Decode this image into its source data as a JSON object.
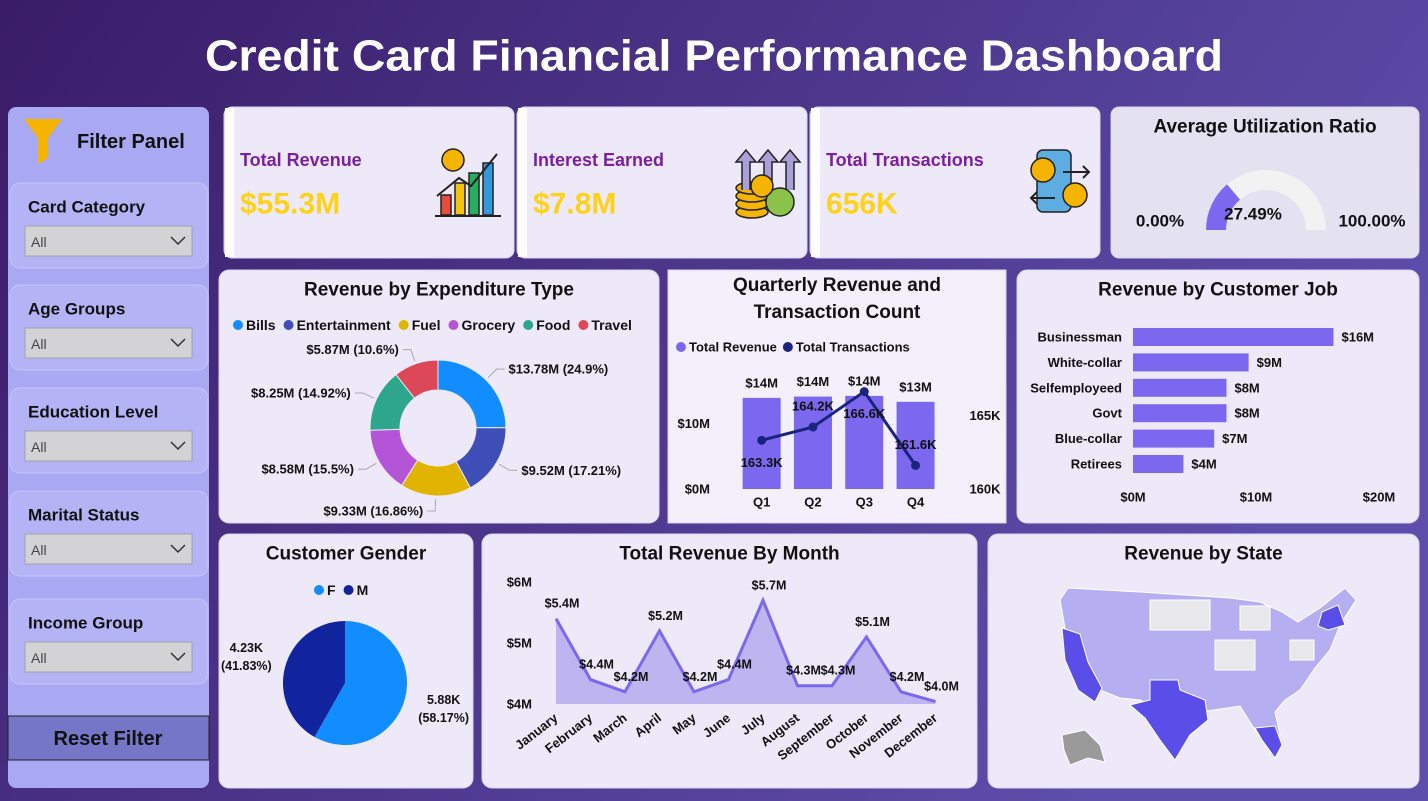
{
  "header": {
    "title": "Credit Card Financial Performance Dashboard"
  },
  "filter_panel": {
    "title": "Filter Panel",
    "filters": [
      {
        "label": "Card Category",
        "value": "All"
      },
      {
        "label": "Age Groups",
        "value": "All"
      },
      {
        "label": "Education Level",
        "value": "All"
      },
      {
        "label": "Marital Status",
        "value": "All"
      },
      {
        "label": "Income Group",
        "value": "All"
      }
    ],
    "reset_button": "Reset Filter"
  },
  "kpis": [
    {
      "label": "Total Revenue",
      "value": "$55.3M"
    },
    {
      "label": "Interest Earned",
      "value": "$7.8M"
    },
    {
      "label": "Total Transactions",
      "value": "656K"
    }
  ],
  "chart_data": [
    {
      "type": "gauge",
      "title": "Average Utilization Ratio",
      "values": [
        27.49
      ],
      "value_labels": [
        "27.49%"
      ],
      "color": "#7b68ee",
      "ylim": [
        0,
        100
      ],
      "yticks": [
        {
          "value": 0,
          "label": "0.00%"
        },
        {
          "value": 100,
          "label": "100.00%"
        }
      ]
    },
    {
      "type": "donut",
      "title": "Revenue by Expenditure Type",
      "legend": "top",
      "categories": [
        "Bills",
        "Entertainment",
        "Fuel",
        "Grocery",
        "Food",
        "Travel"
      ],
      "values": [
        13780000,
        9520000,
        9330000,
        8580000,
        8250000,
        5870000
      ],
      "value_labels": [
        "$13.78M (24.9%)",
        "$9.52M (17.21%)",
        "$9.33M (16.86%)",
        "$8.58M (15.5%)",
        "$8.25M (14.92%)",
        "$5.87M (10.6%)"
      ],
      "colors": [
        "#118dff",
        "#3f4fb8",
        "#e0b400",
        "#b455d8",
        "#2ea68c",
        "#dd4858"
      ]
    },
    {
      "type": "bar_line",
      "title": "Quarterly Revenue and Transaction Count",
      "legend": "top",
      "categories": [
        "Q1",
        "Q2",
        "Q3",
        "Q4"
      ],
      "series": [
        {
          "name": "Total Revenue",
          "type": "bar",
          "color": "#7b68ee",
          "values": [
            13900000,
            14100000,
            14200000,
            13300000
          ],
          "value_labels": [
            "$14M",
            "$14M",
            "$14M",
            "$13M"
          ]
        },
        {
          "name": "Total Transactions",
          "type": "line",
          "axis": "y2",
          "color": "#1a237e",
          "values": [
            163300,
            164200,
            166600,
            161600
          ],
          "value_labels": [
            "163.3K",
            "164.2K",
            "166.6K",
            "161.6K"
          ]
        }
      ],
      "ylim": [
        0,
        18000000
      ],
      "yticks": [
        {
          "value": 0,
          "label": "$0M"
        },
        {
          "value": 10000000,
          "label": "$10M"
        }
      ],
      "y2lim": [
        160000,
        168000
      ],
      "y2ticks": [
        {
          "value": 160000,
          "label": "160K"
        },
        {
          "value": 165000,
          "label": "165K"
        }
      ]
    },
    {
      "type": "hbar",
      "title": "Revenue by Customer Job",
      "categories": [
        "Businessman",
        "White-collar",
        "Selfemployeed",
        "Govt",
        "Blue-collar",
        "Retirees"
      ],
      "values": [
        16300000,
        9400000,
        7600000,
        7600000,
        6600000,
        4100000
      ],
      "value_labels": [
        "$16M",
        "$9M",
        "$8M",
        "$8M",
        "$7M",
        "$4M"
      ],
      "color": "#7b68ee",
      "xlim": [
        0,
        20000000
      ],
      "xticks": [
        {
          "value": 0,
          "label": "$0M"
        },
        {
          "value": 10000000,
          "label": "$10M"
        },
        {
          "value": 20000000,
          "label": "$20M"
        }
      ]
    },
    {
      "type": "pie",
      "title": "Customer Gender",
      "legend": "top",
      "categories": [
        "F",
        "M"
      ],
      "values": [
        5880,
        4230
      ],
      "value_labels": [
        "5.88K (58.17%)",
        "4.23K (41.83%)"
      ],
      "colors": [
        "#118dff",
        "#12239e"
      ]
    },
    {
      "type": "area",
      "title": "Total Revenue By Month",
      "categories": [
        "January",
        "February",
        "March",
        "April",
        "May",
        "June",
        "July",
        "August",
        "September",
        "October",
        "November",
        "December"
      ],
      "values": [
        5400000,
        4400000,
        4200000,
        5200000,
        4200000,
        4400000,
        5700000,
        4300000,
        4300000,
        5100000,
        4200000,
        4040000
      ],
      "value_labels": [
        "$5.4M",
        "$4.4M",
        "$4.2M",
        "$5.2M",
        "$4.2M",
        "$4.4M",
        "$5.7M",
        "$4.3M",
        "$4.3M",
        "$5.1M",
        "$4.2M",
        "$4.0M"
      ],
      "color": "#7b68ee",
      "ylim": [
        4000000,
        6000000
      ],
      "yticks": [
        {
          "value": 4000000,
          "label": "$4M"
        },
        {
          "value": 5000000,
          "label": "$5M"
        },
        {
          "value": 6000000,
          "label": "$6M"
        }
      ]
    },
    {
      "type": "map",
      "title": "Revenue by State"
    }
  ]
}
